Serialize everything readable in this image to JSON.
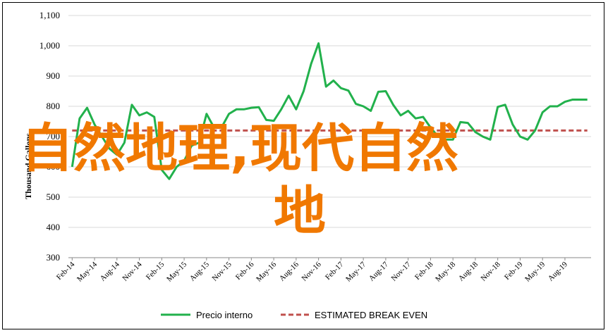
{
  "chart_data": {
    "type": "line",
    "title": "",
    "xlabel": "",
    "ylabel": "Thousand Gallons",
    "ylim": [
      300,
      1100
    ],
    "yticks": [
      "300",
      "400",
      "500",
      "600",
      "700",
      "800",
      "900",
      "1,000",
      "1,100"
    ],
    "x": [
      "Feb-14",
      "Mar-14",
      "Apr-14",
      "May-14",
      "Jun-14",
      "Jul-14",
      "Aug-14",
      "Sep-14",
      "Oct-14",
      "Nov-14",
      "Dec-14",
      "Jan-15",
      "Feb-15",
      "Mar-15",
      "Apr-15",
      "May-15",
      "Jun-15",
      "Jul-15",
      "Aug-15",
      "Sep-15",
      "Oct-15",
      "Nov-15",
      "Dec-15",
      "Jan-16",
      "Feb-16",
      "Mar-16",
      "Apr-16",
      "May-16",
      "Jun-16",
      "Jul-16",
      "Aug-16",
      "Sep-16",
      "Oct-16",
      "Nov-16",
      "Dec-16",
      "Jan-17",
      "Feb-17",
      "Mar-17",
      "Apr-17",
      "May-17",
      "Jun-17",
      "Jul-17",
      "Aug-17",
      "Sep-17",
      "Oct-17",
      "Nov-17",
      "Dec-17",
      "Jan-18",
      "Feb-18",
      "Mar-18",
      "Apr-18",
      "May-18",
      "Jun-18",
      "Jul-18",
      "Aug-18",
      "Sep-18",
      "Oct-18",
      "Nov-18",
      "Dec-18",
      "Jan-19",
      "Feb-19",
      "Mar-19",
      "Apr-19",
      "May-19",
      "Jun-19",
      "Jul-19",
      "Aug-19",
      "Sep-19",
      "Oct-19",
      "Nov-19"
    ],
    "xtick_labels": [
      "Feb-14",
      "May-14",
      "Aug-14",
      "Nov-14",
      "Feb-15",
      "May-15",
      "Aug-15",
      "Nov-15",
      "Feb-16",
      "May-16",
      "Aug-16",
      "Nov-16",
      "Feb-17",
      "May-17",
      "Aug-17",
      "Nov-17",
      "Feb-18",
      "May-18",
      "Aug-18",
      "Nov-18",
      "Feb-19",
      "May-19",
      "Aug-19"
    ],
    "series": [
      {
        "name": "Precio interno",
        "color": "#22b14c",
        "style": "solid",
        "values": [
          600,
          760,
          795,
          740,
          700,
          660,
          640,
          680,
          805,
          770,
          780,
          765,
          590,
          560,
          600,
          620,
          670,
          680,
          775,
          730,
          730,
          775,
          790,
          790,
          795,
          797,
          755,
          752,
          790,
          835,
          790,
          850,
          940,
          1008,
          865,
          885,
          860,
          852,
          808,
          800,
          785,
          848,
          850,
          805,
          770,
          785,
          760,
          765,
          730,
          700,
          690,
          690,
          748,
          745,
          715,
          700,
          690,
          798,
          805,
          740,
          700,
          690,
          720,
          780,
          800,
          800,
          815,
          822,
          822,
          822
        ]
      },
      {
        "name": "ESTIMATED BREAK EVEN",
        "color": "#c0504d",
        "style": "dashed",
        "values": [
          720,
          720,
          720,
          720,
          720,
          720,
          720,
          720,
          720,
          720,
          720,
          720,
          720,
          720,
          720,
          720,
          720,
          720,
          720,
          720,
          720,
          720,
          720,
          720,
          720,
          720,
          720,
          720,
          720,
          720,
          720,
          720,
          720,
          720,
          720,
          720,
          720,
          720,
          720,
          720,
          720,
          720,
          720,
          720,
          720,
          720,
          720,
          720,
          720,
          720,
          720,
          720,
          720,
          720,
          720,
          720,
          720,
          720,
          720,
          720,
          720,
          720,
          720,
          720,
          720,
          720,
          720,
          720,
          720,
          720
        ]
      }
    ],
    "grid": true,
    "legend": "bottom"
  },
  "overlay": {
    "line1": "自然地理,现代自然",
    "line2": "地",
    "color": "#f07800"
  }
}
